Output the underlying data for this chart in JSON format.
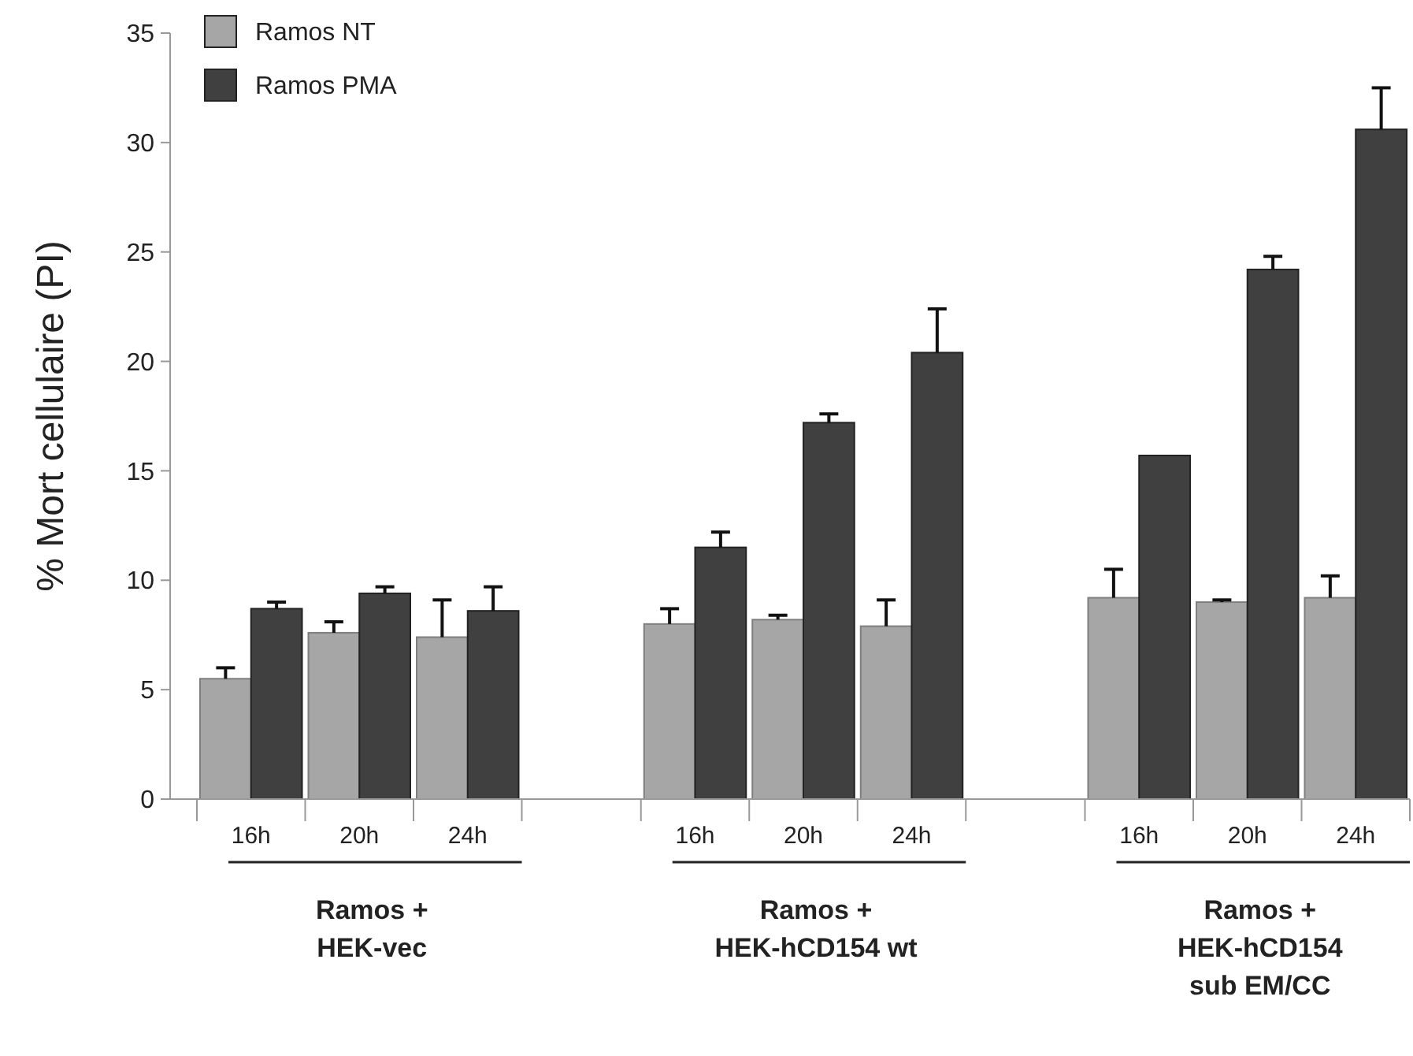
{
  "chart_data": {
    "type": "bar",
    "ylabel": "% Mort cellulaire (PI)",
    "categories": [
      "16h",
      "20h",
      "24h",
      "16h",
      "20h",
      "24h",
      "16h",
      "20h",
      "24h"
    ],
    "series": [
      {
        "name": "Ramos NT",
        "color": "#a6a6a6",
        "values": [
          5.5,
          7.6,
          7.4,
          8.0,
          8.2,
          7.9,
          9.2,
          9.0,
          9.2
        ],
        "errors": [
          [
            5.5,
            6.0
          ],
          [
            7.6,
            8.1
          ],
          [
            7.4,
            9.1
          ],
          [
            8.0,
            8.7
          ],
          [
            8.2,
            8.4
          ],
          [
            7.9,
            9.1
          ],
          [
            9.2,
            10.5
          ],
          [
            9.0,
            9.1
          ],
          [
            9.2,
            10.2
          ]
        ]
      },
      {
        "name": "Ramos PMA",
        "color": "#404040",
        "values": [
          8.7,
          9.4,
          8.6,
          11.5,
          17.2,
          20.4,
          15.7,
          24.2,
          30.6
        ],
        "errors": [
          [
            8.7,
            9.0
          ],
          [
            9.4,
            9.7
          ],
          [
            8.6,
            9.7
          ],
          [
            11.5,
            12.2
          ],
          [
            17.2,
            17.6
          ],
          [
            20.4,
            22.4
          ],
          null,
          [
            24.2,
            24.8
          ],
          [
            30.6,
            32.5
          ]
        ]
      }
    ],
    "ylim": [
      0,
      35
    ],
    "yticks": [
      0,
      5,
      10,
      15,
      20,
      25,
      30,
      35
    ],
    "grid": false,
    "legend": "top left",
    "annotations": [
      "Ramos +\nHEK-vec",
      "Ramos +\nHEK-hCD154 wt",
      "Ramos +\nHEK-hCD154\nsub EM/CC"
    ]
  }
}
